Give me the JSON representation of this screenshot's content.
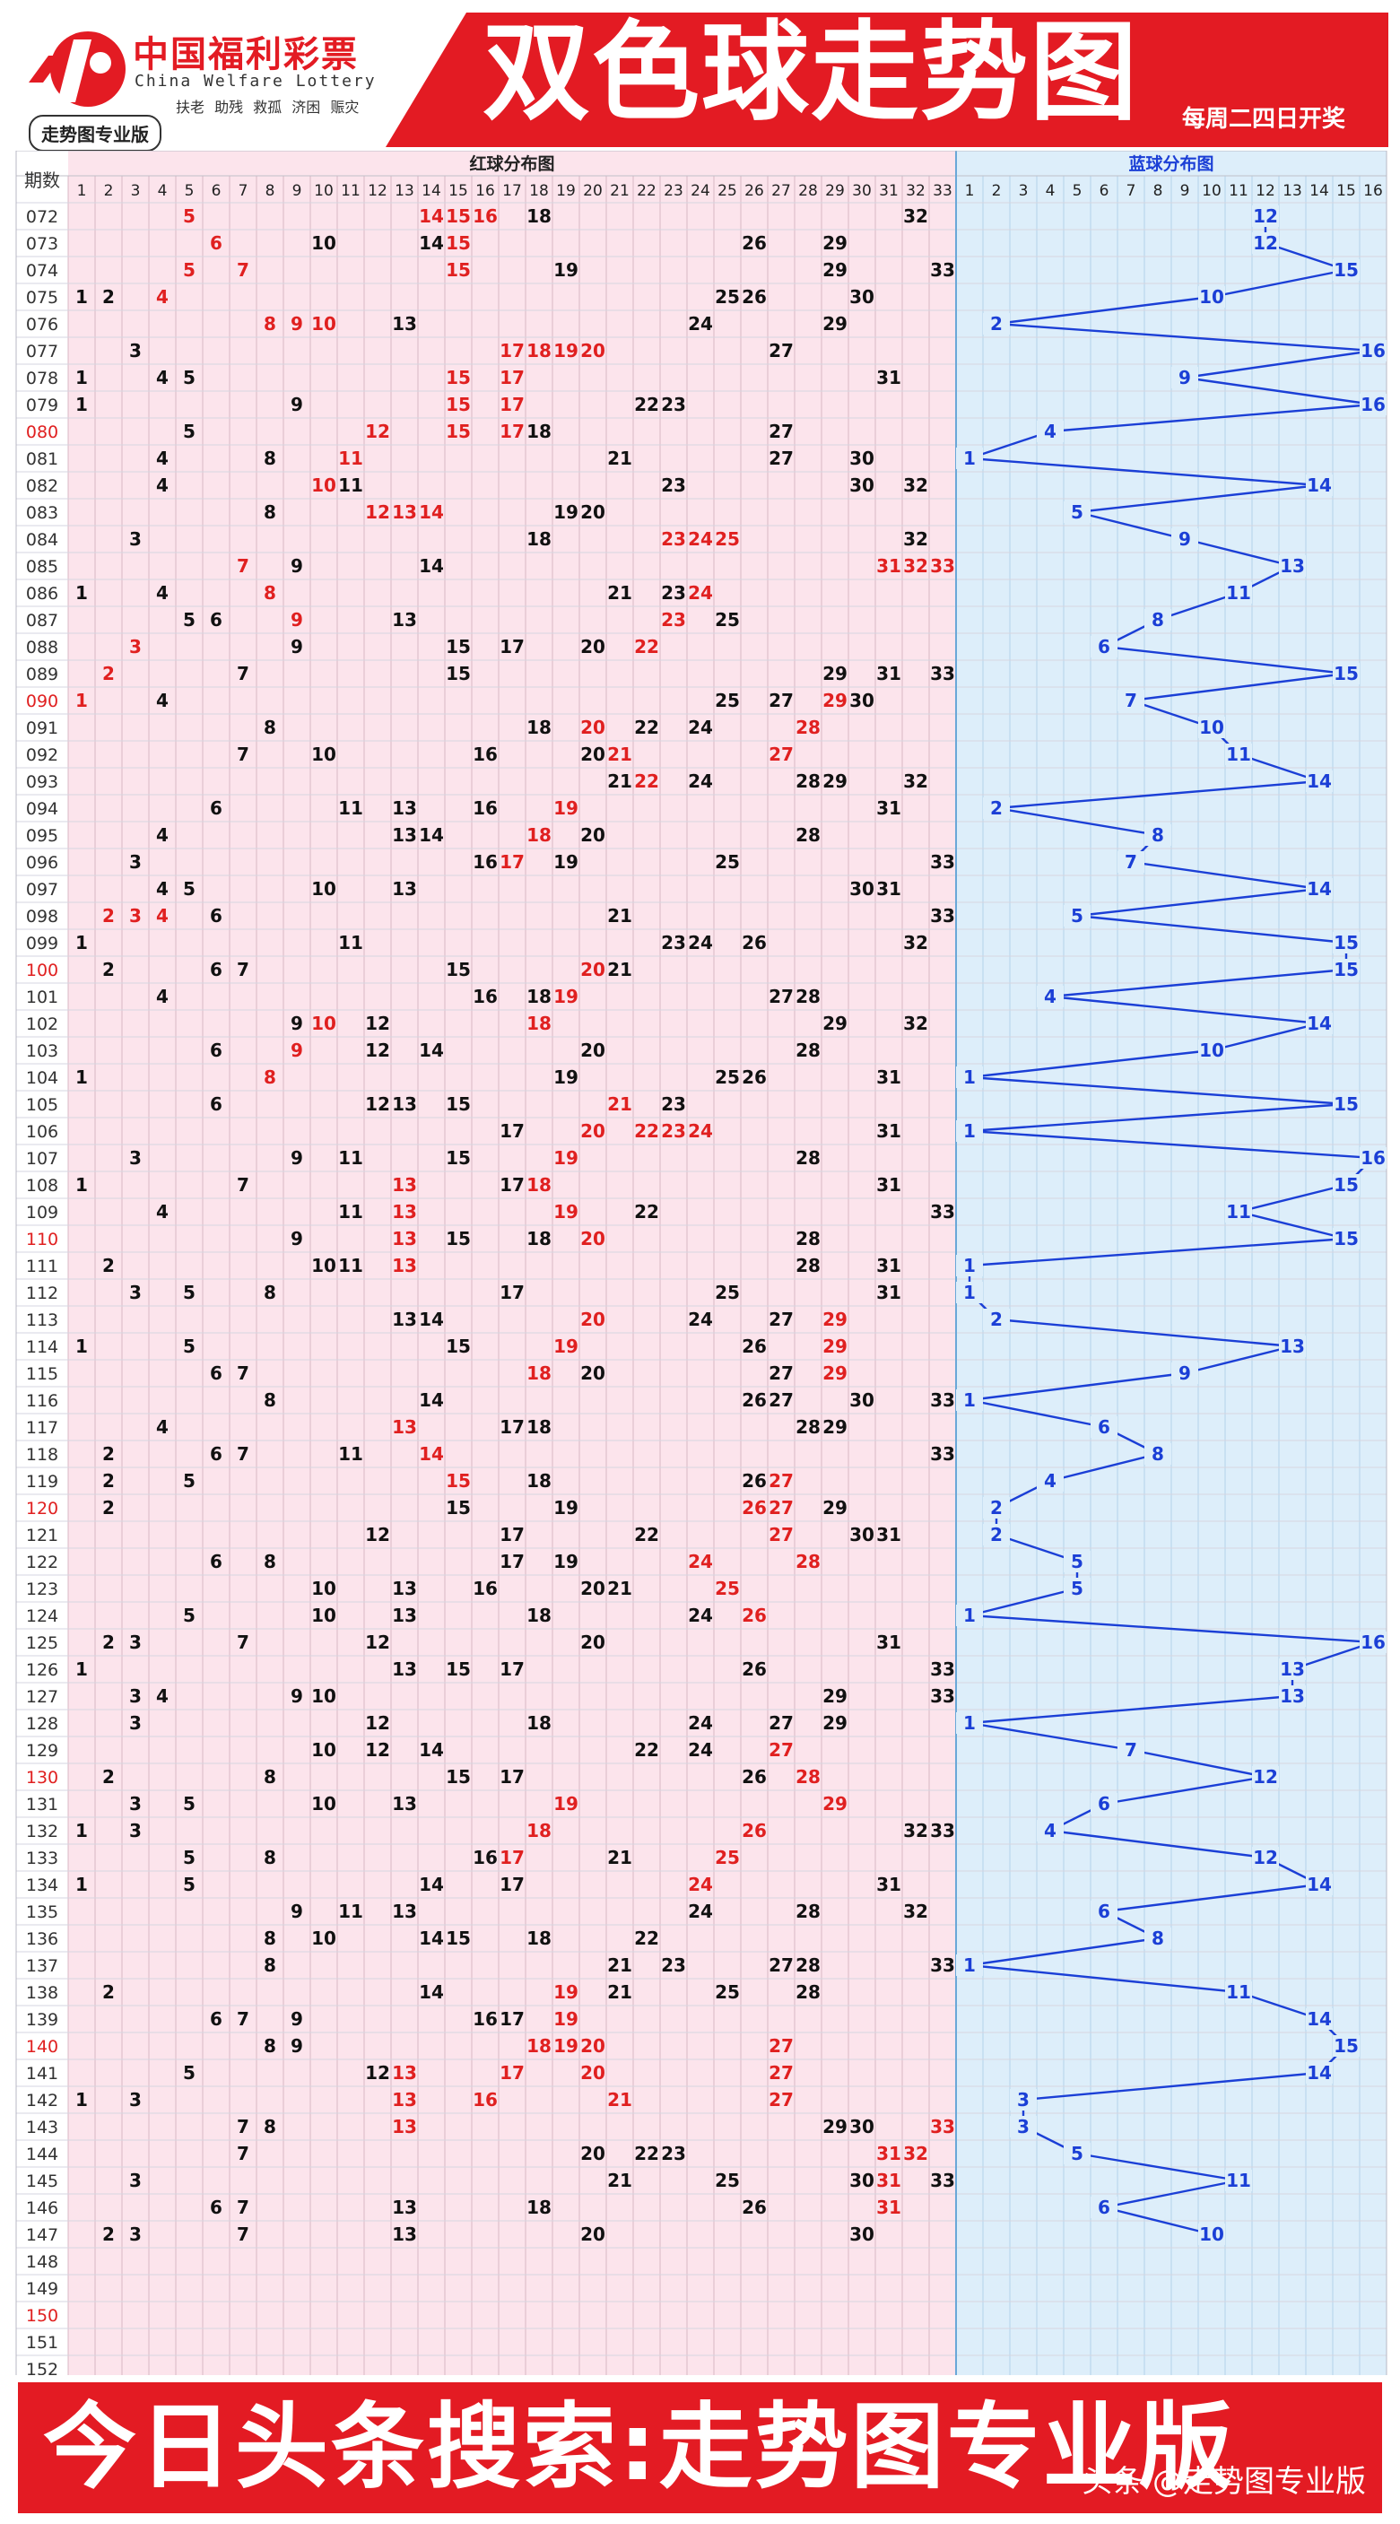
{
  "header": {
    "logo_cn": "中国福利彩票",
    "logo_en": "China Welfare Lottery",
    "logo_slogan": "扶老 助残 救孤 济困 赈灾",
    "badge": "走势图专业版",
    "title": "双色球走势图",
    "subtitle": "每周二四日开奖"
  },
  "footer": {
    "text": "今日头条搜索:走势图专业版",
    "watermark": "头条 @走势图专业版"
  },
  "colors": {
    "brand_red": "#e31b23",
    "red_zone_bg": "#fce4ec",
    "blue_zone_bg": "#ddeefa",
    "blue_line": "#1b3fd6",
    "number_black": "#111111",
    "number_red": "#e02020",
    "number_blue": "#1b3fd6"
  },
  "chart_data": {
    "type": "table",
    "period_header": "期数",
    "red_title": "红球分布图",
    "blue_title": "蓝球分布图",
    "red_columns": [
      1,
      2,
      3,
      4,
      5,
      6,
      7,
      8,
      9,
      10,
      11,
      12,
      13,
      14,
      15,
      16,
      17,
      18,
      19,
      20,
      21,
      22,
      23,
      24,
      25,
      26,
      27,
      28,
      29,
      30,
      31,
      32,
      33
    ],
    "blue_columns": [
      1,
      2,
      3,
      4,
      5,
      6,
      7,
      8,
      9,
      10,
      11,
      12,
      13,
      14,
      15,
      16
    ],
    "highlight_periods": [
      "080",
      "090",
      "100",
      "110",
      "120",
      "130",
      "140",
      "150"
    ],
    "rows": [
      {
        "p": "072",
        "red": [
          5,
          14,
          15,
          16,
          18,
          32
        ],
        "rh": [
          5,
          14,
          15,
          16
        ],
        "blue": 12
      },
      {
        "p": "073",
        "red": [
          6,
          10,
          14,
          15,
          26,
          29
        ],
        "rh": [
          6,
          15
        ],
        "blue": 12
      },
      {
        "p": "074",
        "red": [
          5,
          7,
          15,
          19,
          29,
          33
        ],
        "rh": [
          5,
          7,
          15
        ],
        "blue": 15
      },
      {
        "p": "075",
        "red": [
          1,
          2,
          4,
          25,
          26,
          30
        ],
        "rh": [
          4
        ],
        "blue": 10
      },
      {
        "p": "076",
        "red": [
          8,
          9,
          10,
          13,
          24,
          29
        ],
        "rh": [
          8,
          9,
          10
        ],
        "blue": 2
      },
      {
        "p": "077",
        "red": [
          3,
          17,
          18,
          19,
          20,
          27
        ],
        "rh": [
          17,
          18,
          19,
          20
        ],
        "blue": 16
      },
      {
        "p": "078",
        "red": [
          1,
          4,
          5,
          15,
          17,
          31
        ],
        "rh": [
          15,
          17
        ],
        "blue": 9
      },
      {
        "p": "079",
        "red": [
          1,
          9,
          15,
          17,
          22,
          23
        ],
        "rh": [
          15,
          17
        ],
        "blue": 16
      },
      {
        "p": "080",
        "red": [
          5,
          12,
          15,
          17,
          18,
          27
        ],
        "rh": [
          12,
          15,
          17
        ],
        "blue": 4
      },
      {
        "p": "081",
        "red": [
          4,
          8,
          11,
          21,
          27,
          30
        ],
        "rh": [
          11
        ],
        "blue": 1
      },
      {
        "p": "082",
        "red": [
          4,
          10,
          11,
          23,
          30,
          32
        ],
        "rh": [
          10
        ],
        "blue": 14
      },
      {
        "p": "083",
        "red": [
          8,
          12,
          13,
          14,
          19,
          20
        ],
        "rh": [
          12,
          13,
          14
        ],
        "blue": 5
      },
      {
        "p": "084",
        "red": [
          3,
          18,
          23,
          24,
          25,
          32
        ],
        "rh": [
          23,
          24,
          25
        ],
        "blue": 9
      },
      {
        "p": "085",
        "red": [
          7,
          9,
          14,
          31,
          32,
          33
        ],
        "rh": [
          7,
          31,
          32,
          33
        ],
        "blue": 13
      },
      {
        "p": "086",
        "red": [
          1,
          4,
          8,
          21,
          23,
          24
        ],
        "rh": [
          8,
          24
        ],
        "blue": 11
      },
      {
        "p": "087",
        "red": [
          5,
          6,
          9,
          13,
          23,
          25
        ],
        "rh": [
          9,
          23
        ],
        "blue": 8
      },
      {
        "p": "088",
        "red": [
          3,
          9,
          15,
          17,
          20,
          22
        ],
        "rh": [
          3,
          22
        ],
        "blue": 6
      },
      {
        "p": "089",
        "red": [
          2,
          7,
          15,
          29,
          31,
          33
        ],
        "rh": [
          2
        ],
        "blue": 15
      },
      {
        "p": "090",
        "red": [
          1,
          4,
          25,
          27,
          29,
          30
        ],
        "rh": [
          1,
          29
        ],
        "blue": 7
      },
      {
        "p": "091",
        "red": [
          8,
          18,
          20,
          22,
          24,
          28
        ],
        "rh": [
          20,
          28
        ],
        "blue": 10
      },
      {
        "p": "092",
        "red": [
          7,
          10,
          16,
          20,
          21,
          27
        ],
        "rh": [
          21,
          27
        ],
        "blue": 11
      },
      {
        "p": "093",
        "red": [
          21,
          22,
          24,
          28,
          29,
          32
        ],
        "rh": [
          22
        ],
        "blue": 14
      },
      {
        "p": "094",
        "red": [
          6,
          11,
          13,
          16,
          19,
          31
        ],
        "rh": [
          19
        ],
        "blue": 2
      },
      {
        "p": "095",
        "red": [
          4,
          13,
          14,
          18,
          20,
          28
        ],
        "rh": [
          18
        ],
        "blue": 8
      },
      {
        "p": "096",
        "red": [
          3,
          16,
          17,
          19,
          25,
          33
        ],
        "rh": [
          17
        ],
        "blue": 7
      },
      {
        "p": "097",
        "red": [
          4,
          5,
          10,
          13,
          30,
          31
        ],
        "rh": [],
        "blue": 14
      },
      {
        "p": "098",
        "red": [
          2,
          3,
          4,
          6,
          21,
          33
        ],
        "rh": [
          2,
          3,
          4
        ],
        "blue": 5
      },
      {
        "p": "099",
        "red": [
          1,
          11,
          23,
          24,
          26,
          32
        ],
        "rh": [],
        "blue": 15
      },
      {
        "p": "100",
        "red": [
          2,
          6,
          7,
          15,
          20,
          21
        ],
        "rh": [
          20
        ],
        "blue": 15
      },
      {
        "p": "101",
        "red": [
          4,
          16,
          18,
          19,
          27,
          28
        ],
        "rh": [
          19
        ],
        "blue": 4
      },
      {
        "p": "102",
        "red": [
          9,
          10,
          12,
          18,
          29,
          32
        ],
        "rh": [
          10,
          18
        ],
        "blue": 14
      },
      {
        "p": "103",
        "red": [
          6,
          9,
          12,
          14,
          20,
          28
        ],
        "rh": [
          9
        ],
        "blue": 10
      },
      {
        "p": "104",
        "red": [
          1,
          8,
          19,
          25,
          26,
          31
        ],
        "rh": [
          8
        ],
        "blue": 1
      },
      {
        "p": "105",
        "red": [
          6,
          12,
          13,
          15,
          21,
          23
        ],
        "rh": [
          21
        ],
        "blue": 15
      },
      {
        "p": "106",
        "red": [
          17,
          20,
          22,
          23,
          24,
          31
        ],
        "rh": [
          20,
          22,
          23,
          24
        ],
        "blue": 1
      },
      {
        "p": "107",
        "red": [
          3,
          9,
          11,
          15,
          19,
          28
        ],
        "rh": [
          19
        ],
        "blue": 16
      },
      {
        "p": "108",
        "red": [
          1,
          7,
          13,
          17,
          18,
          31
        ],
        "rh": [
          13,
          18
        ],
        "blue": 15
      },
      {
        "p": "109",
        "red": [
          4,
          11,
          13,
          19,
          22,
          33
        ],
        "rh": [
          13,
          19
        ],
        "blue": 11
      },
      {
        "p": "110",
        "red": [
          9,
          13,
          15,
          18,
          20,
          28
        ],
        "rh": [
          13,
          20
        ],
        "blue": 15
      },
      {
        "p": "111",
        "red": [
          2,
          10,
          11,
          13,
          28,
          31
        ],
        "rh": [
          13
        ],
        "blue": 1
      },
      {
        "p": "112",
        "red": [
          3,
          5,
          8,
          17,
          25,
          31
        ],
        "rh": [],
        "blue": 1
      },
      {
        "p": "113",
        "red": [
          13,
          14,
          20,
          24,
          27,
          29
        ],
        "rh": [
          20,
          29
        ],
        "blue": 2
      },
      {
        "p": "114",
        "red": [
          1,
          5,
          15,
          19,
          26,
          29
        ],
        "rh": [
          19,
          29
        ],
        "blue": 13
      },
      {
        "p": "115",
        "red": [
          6,
          7,
          18,
          20,
          27,
          29
        ],
        "rh": [
          18,
          29
        ],
        "blue": 9
      },
      {
        "p": "116",
        "red": [
          8,
          14,
          26,
          27,
          30,
          33
        ],
        "rh": [],
        "blue": 1
      },
      {
        "p": "117",
        "red": [
          4,
          13,
          17,
          18,
          28,
          29
        ],
        "rh": [
          13
        ],
        "blue": 6
      },
      {
        "p": "118",
        "red": [
          2,
          6,
          7,
          11,
          14,
          33
        ],
        "rh": [
          14
        ],
        "blue": 8
      },
      {
        "p": "119",
        "red": [
          2,
          5,
          15,
          18,
          26,
          27
        ],
        "rh": [
          15,
          27
        ],
        "blue": 4
      },
      {
        "p": "120",
        "red": [
          2,
          15,
          19,
          26,
          27,
          29
        ],
        "rh": [
          26,
          27
        ],
        "blue": 2
      },
      {
        "p": "121",
        "red": [
          12,
          17,
          22,
          27,
          30,
          31
        ],
        "rh": [
          27
        ],
        "blue": 2
      },
      {
        "p": "122",
        "red": [
          6,
          8,
          17,
          19,
          24,
          28
        ],
        "rh": [
          24,
          28
        ],
        "blue": 5
      },
      {
        "p": "123",
        "red": [
          10,
          13,
          16,
          20,
          21,
          25
        ],
        "rh": [
          25
        ],
        "blue": 5
      },
      {
        "p": "124",
        "red": [
          5,
          10,
          13,
          18,
          24,
          26
        ],
        "rh": [
          26
        ],
        "blue": 1
      },
      {
        "p": "125",
        "red": [
          2,
          3,
          7,
          12,
          20,
          31
        ],
        "rh": [],
        "blue": 16
      },
      {
        "p": "126",
        "red": [
          1,
          13,
          15,
          17,
          26,
          33
        ],
        "rh": [],
        "blue": 13
      },
      {
        "p": "127",
        "red": [
          3,
          4,
          9,
          10,
          29,
          33
        ],
        "rh": [],
        "blue": 13
      },
      {
        "p": "128",
        "red": [
          3,
          12,
          18,
          24,
          27,
          29
        ],
        "rh": [],
        "blue": 1
      },
      {
        "p": "129",
        "red": [
          10,
          12,
          14,
          22,
          24,
          27
        ],
        "rh": [
          27
        ],
        "blue": 7
      },
      {
        "p": "130",
        "red": [
          2,
          8,
          15,
          17,
          26,
          28
        ],
        "rh": [
          28
        ],
        "blue": 12
      },
      {
        "p": "131",
        "red": [
          3,
          5,
          10,
          13,
          19,
          29
        ],
        "rh": [
          19,
          29
        ],
        "blue": 6
      },
      {
        "p": "132",
        "red": [
          1,
          3,
          18,
          26,
          32,
          33
        ],
        "rh": [
          18,
          26
        ],
        "blue": 4
      },
      {
        "p": "133",
        "red": [
          5,
          8,
          16,
          17,
          21,
          25
        ],
        "rh": [
          17,
          25
        ],
        "blue": 12
      },
      {
        "p": "134",
        "red": [
          1,
          5,
          14,
          17,
          24,
          31
        ],
        "rh": [
          24
        ],
        "blue": 14
      },
      {
        "p": "135",
        "red": [
          9,
          11,
          13,
          24,
          28,
          32
        ],
        "rh": [],
        "blue": 6
      },
      {
        "p": "136",
        "red": [
          8,
          10,
          14,
          15,
          18,
          22
        ],
        "rh": [],
        "blue": 8
      },
      {
        "p": "137",
        "red": [
          8,
          21,
          23,
          27,
          28,
          33
        ],
        "rh": [],
        "blue": 1
      },
      {
        "p": "138",
        "red": [
          2,
          14,
          19,
          21,
          25,
          28
        ],
        "rh": [
          19
        ],
        "blue": 11
      },
      {
        "p": "139",
        "red": [
          6,
          7,
          9,
          16,
          17,
          19
        ],
        "rh": [
          19
        ],
        "blue": 14
      },
      {
        "p": "140",
        "red": [
          8,
          9,
          18,
          19,
          20,
          27
        ],
        "rh": [
          18,
          19,
          20,
          27
        ],
        "blue": 15
      },
      {
        "p": "141",
        "red": [
          5,
          12,
          13,
          17,
          20,
          27
        ],
        "rh": [
          13,
          17,
          20,
          27
        ],
        "blue": 14
      },
      {
        "p": "142",
        "red": [
          1,
          3,
          13,
          16,
          21,
          27
        ],
        "rh": [
          13,
          16,
          21,
          27
        ],
        "blue": 3
      },
      {
        "p": "143",
        "red": [
          7,
          8,
          13,
          29,
          30,
          33
        ],
        "rh": [
          13,
          33
        ],
        "blue": 3
      },
      {
        "p": "144",
        "red": [
          7,
          20,
          22,
          23,
          31,
          32
        ],
        "rh": [
          31,
          32
        ],
        "blue": 5
      },
      {
        "p": "145",
        "red": [
          3,
          21,
          25,
          30,
          31,
          33
        ],
        "rh": [
          31
        ],
        "blue": 11
      },
      {
        "p": "146",
        "red": [
          6,
          7,
          13,
          18,
          26,
          31
        ],
        "rh": [
          31
        ],
        "blue": 6
      },
      {
        "p": "147",
        "red": [
          2,
          3,
          7,
          13,
          20,
          30
        ],
        "rh": [],
        "blue": 10
      },
      {
        "p": "148",
        "red": [],
        "rh": [],
        "blue": null
      },
      {
        "p": "149",
        "red": [],
        "rh": [],
        "blue": null
      },
      {
        "p": "150",
        "red": [],
        "rh": [],
        "blue": null
      },
      {
        "p": "151",
        "red": [],
        "rh": [],
        "blue": null
      },
      {
        "p": "152",
        "red": [],
        "rh": [],
        "blue": null
      }
    ]
  }
}
